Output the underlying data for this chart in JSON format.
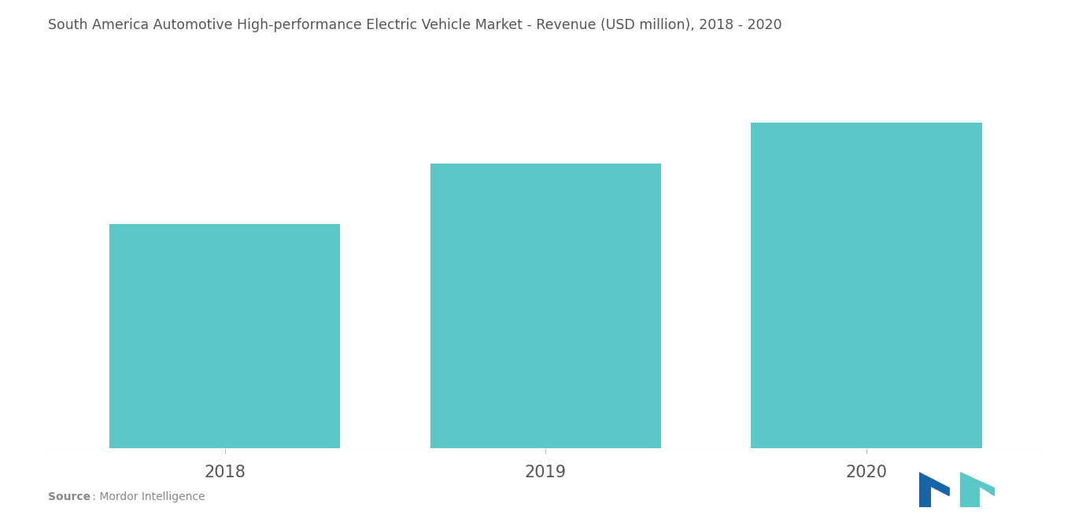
{
  "title": "South America Automotive High-performance Electric Vehicle Market - Revenue (USD million), 2018 - 2020",
  "categories": [
    "2018",
    "2019",
    "2020"
  ],
  "values": [
    55,
    70,
    80
  ],
  "bar_color": "#5BC8C8",
  "background_color": "#ffffff",
  "title_fontsize": 12.5,
  "tick_fontsize": 15,
  "source_bold": "Source",
  "source_rest": " : Mordor Intelligence",
  "ylim": [
    0,
    95
  ],
  "bar_width": 0.72,
  "xlim": [
    -0.55,
    2.55
  ]
}
